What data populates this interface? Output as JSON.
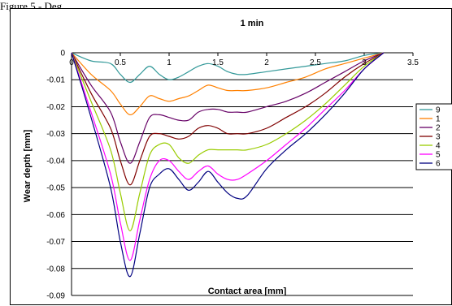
{
  "page": {
    "top_text": "Figure 5 - Deg"
  },
  "chart_data": {
    "type": "line",
    "title": "1 min",
    "xlabel": "Contact area [mm]",
    "ylabel": "Wear depth [mm]",
    "xlim": [
      0,
      3.5
    ],
    "ylim": [
      -0.09,
      0
    ],
    "x_ticks": [
      "0",
      "0.5",
      "1",
      "1.5",
      "2",
      "2.5",
      "3",
      "3.5"
    ],
    "y_ticks": [
      "0",
      "-0.01",
      "-0.02",
      "-0.03",
      "-0.04",
      "-0.05",
      "-0.06",
      "-0.07",
      "-0.08",
      "-0.09"
    ],
    "grid": "horizontal",
    "legend_position": "right",
    "series": [
      {
        "name": "9",
        "color": "#339999",
        "x": [
          0,
          0.2,
          0.4,
          0.5,
          0.6,
          0.7,
          0.8,
          0.9,
          1.0,
          1.1,
          1.2,
          1.3,
          1.4,
          1.5,
          1.6,
          1.7,
          1.8,
          2.0,
          2.2,
          2.4,
          2.6,
          2.8,
          3.0,
          3.2
        ],
        "y": [
          0,
          -0.003,
          -0.004,
          -0.008,
          -0.011,
          -0.008,
          -0.005,
          -0.008,
          -0.01,
          -0.009,
          -0.007,
          -0.005,
          -0.004,
          -0.005,
          -0.007,
          -0.008,
          -0.008,
          -0.007,
          -0.006,
          -0.005,
          -0.004,
          -0.003,
          -0.001,
          0
        ]
      },
      {
        "name": "1",
        "color": "#ff8000",
        "x": [
          0,
          0.2,
          0.4,
          0.5,
          0.6,
          0.7,
          0.8,
          0.9,
          1.0,
          1.1,
          1.2,
          1.3,
          1.4,
          1.5,
          1.6,
          1.7,
          1.8,
          2.0,
          2.2,
          2.4,
          2.6,
          2.8,
          3.0,
          3.2
        ],
        "y": [
          0,
          -0.008,
          -0.014,
          -0.019,
          -0.023,
          -0.02,
          -0.016,
          -0.017,
          -0.018,
          -0.017,
          -0.016,
          -0.014,
          -0.012,
          -0.013,
          -0.014,
          -0.014,
          -0.014,
          -0.013,
          -0.011,
          -0.009,
          -0.006,
          -0.004,
          -0.002,
          0
        ]
      },
      {
        "name": "2",
        "color": "#660066",
        "x": [
          0,
          0.2,
          0.4,
          0.5,
          0.6,
          0.7,
          0.8,
          0.9,
          1.0,
          1.1,
          1.2,
          1.3,
          1.4,
          1.5,
          1.6,
          1.7,
          1.8,
          2.0,
          2.2,
          2.4,
          2.6,
          2.8,
          3.0,
          3.2
        ],
        "y": [
          0,
          -0.012,
          -0.022,
          -0.033,
          -0.041,
          -0.033,
          -0.024,
          -0.023,
          -0.024,
          -0.025,
          -0.025,
          -0.022,
          -0.021,
          -0.021,
          -0.022,
          -0.022,
          -0.022,
          -0.02,
          -0.018,
          -0.015,
          -0.011,
          -0.007,
          -0.003,
          0
        ]
      },
      {
        "name": "3",
        "color": "#800000",
        "x": [
          0,
          0.2,
          0.4,
          0.5,
          0.6,
          0.7,
          0.8,
          0.9,
          1.0,
          1.1,
          1.2,
          1.3,
          1.4,
          1.5,
          1.6,
          1.7,
          1.8,
          2.0,
          2.2,
          2.4,
          2.6,
          2.8,
          3.0,
          3.2
        ],
        "y": [
          0,
          -0.015,
          -0.028,
          -0.04,
          -0.049,
          -0.04,
          -0.031,
          -0.03,
          -0.031,
          -0.032,
          -0.031,
          -0.028,
          -0.027,
          -0.028,
          -0.03,
          -0.03,
          -0.03,
          -0.028,
          -0.024,
          -0.02,
          -0.015,
          -0.009,
          -0.004,
          0
        ]
      },
      {
        "name": "4",
        "color": "#99cc00",
        "x": [
          0,
          0.2,
          0.4,
          0.5,
          0.6,
          0.7,
          0.8,
          0.9,
          1.0,
          1.1,
          1.2,
          1.3,
          1.4,
          1.5,
          1.6,
          1.7,
          1.8,
          2.0,
          2.2,
          2.4,
          2.6,
          2.8,
          3.0,
          3.2
        ],
        "y": [
          0,
          -0.018,
          -0.036,
          -0.052,
          -0.066,
          -0.052,
          -0.038,
          -0.034,
          -0.034,
          -0.039,
          -0.041,
          -0.038,
          -0.036,
          -0.036,
          -0.036,
          -0.036,
          -0.036,
          -0.034,
          -0.03,
          -0.025,
          -0.019,
          -0.012,
          -0.005,
          0
        ]
      },
      {
        "name": "5",
        "color": "#ff00ff",
        "x": [
          0,
          0.2,
          0.4,
          0.5,
          0.6,
          0.7,
          0.8,
          0.9,
          1.0,
          1.1,
          1.2,
          1.3,
          1.4,
          1.5,
          1.6,
          1.7,
          1.8,
          2.0,
          2.2,
          2.4,
          2.6,
          2.8,
          3.0,
          3.2
        ],
        "y": [
          0,
          -0.022,
          -0.045,
          -0.063,
          -0.077,
          -0.062,
          -0.047,
          -0.04,
          -0.04,
          -0.044,
          -0.047,
          -0.044,
          -0.042,
          -0.045,
          -0.047,
          -0.047,
          -0.045,
          -0.04,
          -0.034,
          -0.028,
          -0.021,
          -0.014,
          -0.006,
          0
        ]
      },
      {
        "name": "6",
        "color": "#000080",
        "x": [
          0,
          0.2,
          0.4,
          0.5,
          0.6,
          0.7,
          0.8,
          0.9,
          1.0,
          1.1,
          1.2,
          1.3,
          1.4,
          1.5,
          1.6,
          1.7,
          1.8,
          2.0,
          2.2,
          2.4,
          2.6,
          2.8,
          3.0,
          3.2
        ],
        "y": [
          0,
          -0.024,
          -0.05,
          -0.07,
          -0.083,
          -0.067,
          -0.05,
          -0.045,
          -0.043,
          -0.047,
          -0.051,
          -0.048,
          -0.044,
          -0.048,
          -0.052,
          -0.054,
          -0.053,
          -0.043,
          -0.036,
          -0.03,
          -0.023,
          -0.015,
          -0.006,
          0
        ]
      }
    ]
  }
}
